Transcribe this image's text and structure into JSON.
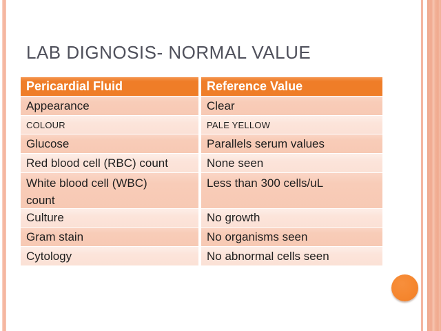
{
  "slide": {
    "title": "LAB DIGNOSIS- NORMAL VALUE"
  },
  "table": {
    "headers": [
      "Pericardial Fluid",
      "Reference Value"
    ],
    "rows": [
      {
        "parameter": "Appearance",
        "value": "Clear"
      },
      {
        "parameter": "COLOUR",
        "value": "PALE YELLOW"
      },
      {
        "parameter": "Glucose",
        "value": "Parallels serum values"
      },
      {
        "parameter": "Red blood cell (RBC) count",
        "value": "None seen"
      },
      {
        "parameter": "White blood cell (WBC) count",
        "value": "Less than 300 cells/uL"
      },
      {
        "parameter": "Culture",
        "value": "No growth"
      },
      {
        "parameter": "Gram stain",
        "value": "No organisms seen"
      },
      {
        "parameter": "Cytology",
        "value": "No abnormal cells seen"
      }
    ]
  },
  "colors": {
    "header_background": "#ef7d28",
    "row_dark": "#f8ccb8",
    "row_light": "#fce4da",
    "title_text": "#4f505b",
    "body_text": "#1f1f1f",
    "accent_circle": "#f5862e",
    "border_stripe": "#f5b6a0"
  }
}
